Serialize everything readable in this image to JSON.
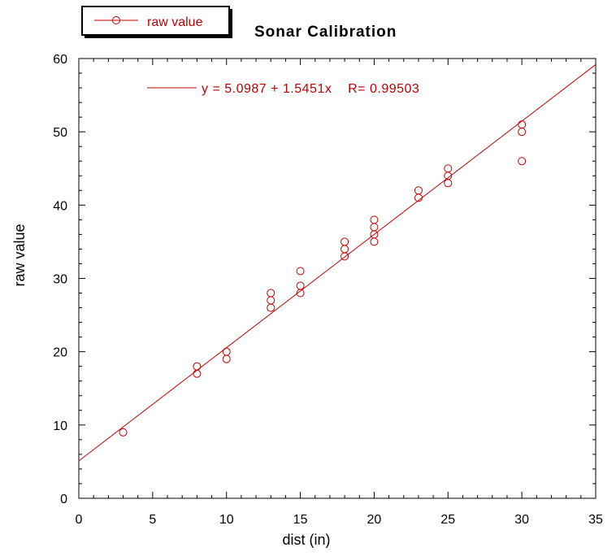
{
  "chart_data": {
    "type": "scatter",
    "title": "Sonar Calibration",
    "xlabel": "dist (in)",
    "ylabel": "raw value",
    "xlim": [
      0,
      35
    ],
    "ylim": [
      0,
      60
    ],
    "xticks": [
      0,
      5,
      10,
      15,
      20,
      25,
      30,
      35
    ],
    "yticks": [
      0,
      10,
      20,
      30,
      40,
      50,
      60
    ],
    "grid": false,
    "legend_placement": "top-left",
    "series": [
      {
        "name": "raw value",
        "color": "#c00000",
        "marker": "circle-open",
        "points": [
          [
            3,
            9
          ],
          [
            8,
            18
          ],
          [
            8,
            17
          ],
          [
            10,
            20
          ],
          [
            10,
            19
          ],
          [
            13,
            28
          ],
          [
            13,
            27
          ],
          [
            13,
            26
          ],
          [
            15,
            31
          ],
          [
            15,
            29
          ],
          [
            15,
            28
          ],
          [
            18,
            35
          ],
          [
            18,
            34
          ],
          [
            18,
            33
          ],
          [
            20,
            38
          ],
          [
            20,
            37
          ],
          [
            20,
            36
          ],
          [
            20,
            35
          ],
          [
            23,
            42
          ],
          [
            23,
            41
          ],
          [
            25,
            45
          ],
          [
            25,
            44
          ],
          [
            25,
            43
          ],
          [
            30,
            51
          ],
          [
            30,
            50
          ],
          [
            30,
            46
          ]
        ]
      }
    ],
    "fit": {
      "intercept": 5.0987,
      "slope": 1.5451,
      "color": "#c00000",
      "label": "y = 5.0987 + 1.5451x    R= 0.99503"
    }
  }
}
